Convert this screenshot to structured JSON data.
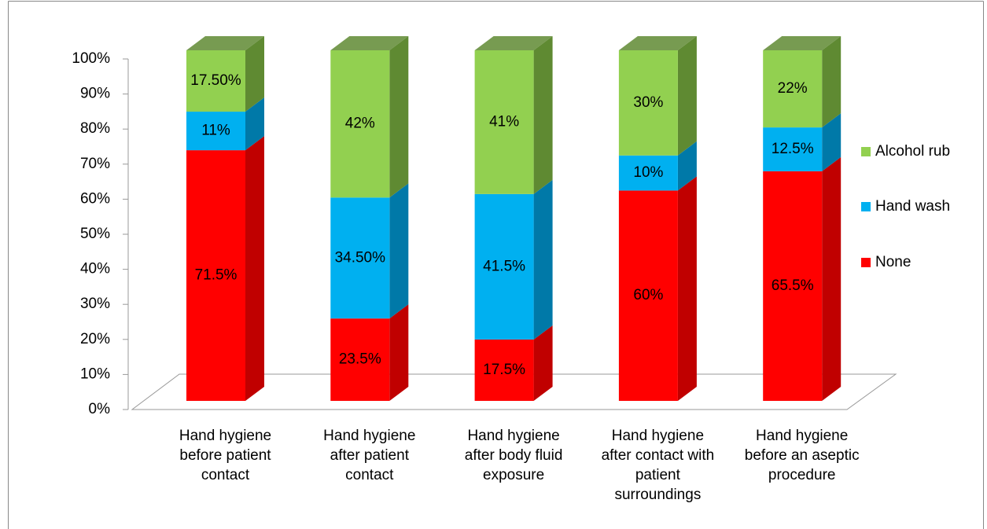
{
  "chart_data": {
    "type": "bar3d_stacked",
    "categories": [
      "Hand hygiene before patient contact",
      "Hand hygiene after patient contact",
      "Hand hygiene after body fluid exposure",
      "Hand hygiene after contact with patient surroundings",
      "Hand hygiene before an aseptic procedure"
    ],
    "series": [
      {
        "name": "None",
        "color": "#ff0000",
        "side_color": "#c00000",
        "values": [
          71.5,
          23.5,
          17.5,
          60,
          65.5
        ],
        "value_labels": [
          "71.5%",
          "23.5%",
          "17.5%",
          "60%",
          "65.5%"
        ]
      },
      {
        "name": "Hand wash",
        "color": "#00b0f0",
        "side_color": "#0079a8",
        "values": [
          11,
          34.5,
          41.5,
          10,
          12.5
        ],
        "value_labels": [
          "11%",
          "34.50%",
          "41.5%",
          "10%",
          "12.5%"
        ]
      },
      {
        "name": "Alcohol rub",
        "color": "#92d050",
        "side_color": "#5f8a32",
        "values": [
          17.5,
          42,
          41,
          30,
          22
        ],
        "value_labels": [
          "17.50%",
          "42%",
          "41%",
          "30%",
          "22%"
        ]
      }
    ],
    "ylim": [
      0,
      100
    ],
    "yticks": [
      {
        "value": 0,
        "label": "0%"
      },
      {
        "value": 10,
        "label": "10%"
      },
      {
        "value": 20,
        "label": "20%"
      },
      {
        "value": 30,
        "label": "30%"
      },
      {
        "value": 40,
        "label": "40%"
      },
      {
        "value": 50,
        "label": "50%"
      },
      {
        "value": 60,
        "label": "60%"
      },
      {
        "value": 70,
        "label": "70%"
      },
      {
        "value": 80,
        "label": "80%"
      },
      {
        "value": 90,
        "label": "90%"
      },
      {
        "value": 100,
        "label": "100%"
      }
    ],
    "legend": "right"
  }
}
